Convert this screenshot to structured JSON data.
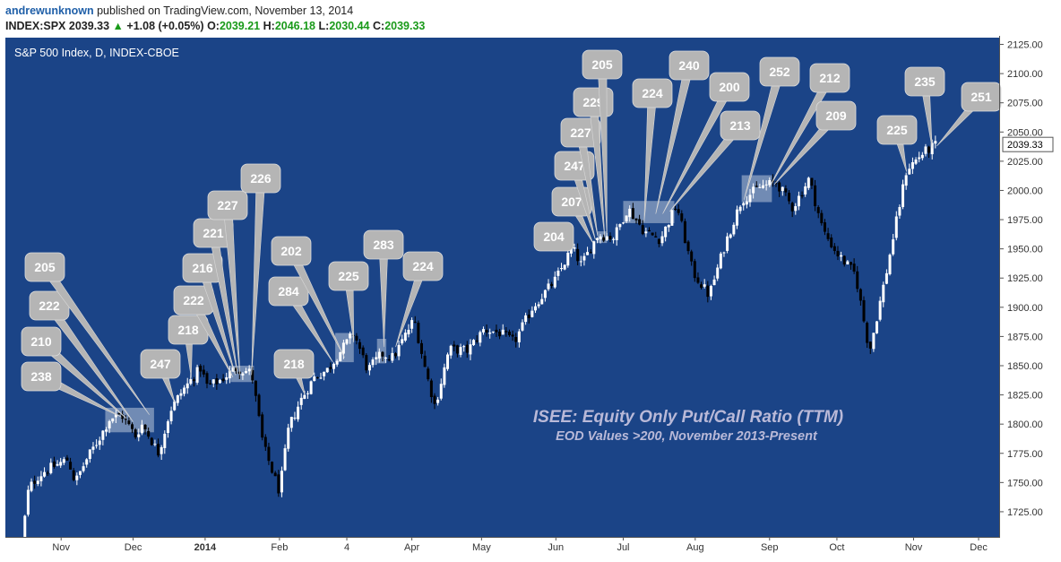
{
  "header": {
    "author": "andrewunknown",
    "published_text": "published on TradingView.com, November 13, 2014",
    "symbol": "INDEX:SPX",
    "last": "2039.33",
    "change_arrow": "▲",
    "change": "+1.08 (+0.05%)",
    "open_label": "O:",
    "open": "2039.21",
    "high_label": "H:",
    "high": "2046.18",
    "low_label": "L:",
    "low": "2030.44",
    "close_label": "C:",
    "close": "2039.33"
  },
  "colors": {
    "background": "#1b4487",
    "up_candle": "#ffffff",
    "down_candle": "#000000",
    "callout": "#b5b5b5",
    "annotation_text": "#b9b9d8",
    "accent_green": "#1a9a1a"
  },
  "chart_data": {
    "type": "candlestick",
    "title": "S&P 500 Index, D, INDEX-CBOE",
    "annotation_title": "ISEE: Equity Only Put/Call Ratio (TTM)",
    "annotation_subtitle": "EOD Values >200, November 2013-Present",
    "last_price_label": "2039.33",
    "grid": false,
    "ylim": [
      1705,
      2130
    ],
    "y_ticks": [
      1725,
      1750,
      1775,
      1800,
      1825,
      1850,
      1875,
      1900,
      1925,
      1950,
      1975,
      2000,
      2025,
      2050,
      2075,
      2100,
      2125
    ],
    "y_tick_labels": [
      "1725.00",
      "1750.00",
      "1775.00",
      "1800.00",
      "1825.00",
      "1850.00",
      "1875.00",
      "1900.00",
      "1925.00",
      "1950.00",
      "1975.00",
      "2000.00",
      "2025.00",
      "2050.00",
      "2075.00",
      "2100.00",
      "2125.00"
    ],
    "x_tick_labels": [
      {
        "label": "Nov",
        "date": "2013-11-01"
      },
      {
        "label": "Dec",
        "date": "2013-12-02"
      },
      {
        "label": "2014",
        "date": "2014-01-02"
      },
      {
        "label": "Feb",
        "date": "2014-02-03"
      },
      {
        "label": "4",
        "date": "2014-03-04"
      },
      {
        "label": "Apr",
        "date": "2014-04-01"
      },
      {
        "label": "May",
        "date": "2014-05-01"
      },
      {
        "label": "Jun",
        "date": "2014-06-02"
      },
      {
        "label": "Jul",
        "date": "2014-07-01"
      },
      {
        "label": "Aug",
        "date": "2014-08-01"
      },
      {
        "label": "Sep",
        "date": "2014-09-02"
      },
      {
        "label": "Oct",
        "date": "2014-10-01"
      },
      {
        "label": "Nov",
        "date": "2014-11-03"
      },
      {
        "label": "Dec",
        "date": "2014-12-01"
      }
    ],
    "closes": [
      {
        "date": "2013-10-15",
        "close": 1698
      },
      {
        "date": "2013-10-18",
        "close": 1745
      },
      {
        "date": "2013-10-22",
        "close": 1755
      },
      {
        "date": "2013-10-25",
        "close": 1760
      },
      {
        "date": "2013-10-30",
        "close": 1765
      },
      {
        "date": "2013-11-04",
        "close": 1770
      },
      {
        "date": "2013-11-07",
        "close": 1750
      },
      {
        "date": "2013-11-12",
        "close": 1770
      },
      {
        "date": "2013-11-18",
        "close": 1790
      },
      {
        "date": "2013-11-22",
        "close": 1805
      },
      {
        "date": "2013-11-27",
        "close": 1808
      },
      {
        "date": "2013-12-03",
        "close": 1790
      },
      {
        "date": "2013-12-06",
        "close": 1800
      },
      {
        "date": "2013-12-13",
        "close": 1775
      },
      {
        "date": "2013-12-18",
        "close": 1812
      },
      {
        "date": "2013-12-23",
        "close": 1828
      },
      {
        "date": "2013-12-31",
        "close": 1848
      },
      {
        "date": "2014-01-03",
        "close": 1832
      },
      {
        "date": "2014-01-09",
        "close": 1838
      },
      {
        "date": "2014-01-15",
        "close": 1848
      },
      {
        "date": "2014-01-22",
        "close": 1844
      },
      {
        "date": "2014-01-27",
        "close": 1782
      },
      {
        "date": "2014-02-03",
        "close": 1742
      },
      {
        "date": "2014-02-07",
        "close": 1797
      },
      {
        "date": "2014-02-12",
        "close": 1820
      },
      {
        "date": "2014-02-18",
        "close": 1840
      },
      {
        "date": "2014-02-24",
        "close": 1847
      },
      {
        "date": "2014-02-28",
        "close": 1859
      },
      {
        "date": "2014-03-07",
        "close": 1878
      },
      {
        "date": "2014-03-13",
        "close": 1846
      },
      {
        "date": "2014-03-19",
        "close": 1860
      },
      {
        "date": "2014-03-24",
        "close": 1857
      },
      {
        "date": "2014-04-02",
        "close": 1890
      },
      {
        "date": "2014-04-07",
        "close": 1845
      },
      {
        "date": "2014-04-11",
        "close": 1815
      },
      {
        "date": "2014-04-17",
        "close": 1864
      },
      {
        "date": "2014-04-25",
        "close": 1863
      },
      {
        "date": "2014-05-02",
        "close": 1881
      },
      {
        "date": "2014-05-09",
        "close": 1878
      },
      {
        "date": "2014-05-15",
        "close": 1870
      },
      {
        "date": "2014-05-23",
        "close": 1900
      },
      {
        "date": "2014-06-02",
        "close": 1924
      },
      {
        "date": "2014-06-09",
        "close": 1951
      },
      {
        "date": "2014-06-13",
        "close": 1936
      },
      {
        "date": "2014-06-20",
        "close": 1962
      },
      {
        "date": "2014-06-27",
        "close": 1960
      },
      {
        "date": "2014-07-03",
        "close": 1985
      },
      {
        "date": "2014-07-10",
        "close": 1965
      },
      {
        "date": "2014-07-17",
        "close": 1958
      },
      {
        "date": "2014-07-24",
        "close": 1988
      },
      {
        "date": "2014-07-31",
        "close": 1930
      },
      {
        "date": "2014-08-07",
        "close": 1910
      },
      {
        "date": "2014-08-14",
        "close": 1955
      },
      {
        "date": "2014-08-21",
        "close": 1992
      },
      {
        "date": "2014-08-29",
        "close": 2003
      },
      {
        "date": "2014-09-05",
        "close": 2007
      },
      {
        "date": "2014-09-12",
        "close": 1985
      },
      {
        "date": "2014-09-19",
        "close": 2010
      },
      {
        "date": "2014-09-25",
        "close": 1966
      },
      {
        "date": "2014-10-01",
        "close": 1946
      },
      {
        "date": "2014-10-09",
        "close": 1928
      },
      {
        "date": "2014-10-15",
        "close": 1862
      },
      {
        "date": "2014-10-22",
        "close": 1927
      },
      {
        "date": "2014-10-31",
        "close": 2018
      },
      {
        "date": "2014-11-07",
        "close": 2032
      },
      {
        "date": "2014-11-13",
        "close": 2039.33
      }
    ],
    "shaded_zones": [
      {
        "start": "2013-11-20",
        "end": "2013-12-11",
        "low": 1793,
        "high": 1814
      },
      {
        "start": "2014-01-13",
        "end": "2014-01-23",
        "low": 1836,
        "high": 1850
      },
      {
        "start": "2014-02-27",
        "end": "2014-03-07",
        "low": 1853,
        "high": 1878
      },
      {
        "start": "2014-03-17",
        "end": "2014-03-21",
        "low": 1852,
        "high": 1873
      },
      {
        "start": "2014-06-20",
        "end": "2014-06-24",
        "low": 1955,
        "high": 1965
      },
      {
        "start": "2014-07-01",
        "end": "2014-07-23",
        "low": 1972,
        "high": 1991
      },
      {
        "start": "2014-08-21",
        "end": "2014-09-03",
        "low": 1990,
        "high": 2013
      }
    ],
    "callouts": [
      {
        "value": "238",
        "date": "2013-11-27",
        "price": 1806
      },
      {
        "value": "210",
        "date": "2013-11-29",
        "price": 1805
      },
      {
        "value": "222",
        "date": "2013-12-02",
        "price": 1802
      },
      {
        "value": "205",
        "date": "2013-12-09",
        "price": 1808
      },
      {
        "value": "247",
        "date": "2013-12-20",
        "price": 1818
      },
      {
        "value": "218",
        "date": "2013-12-27",
        "price": 1840
      },
      {
        "value": "222",
        "date": "2014-01-14",
        "price": 1840
      },
      {
        "value": "216",
        "date": "2014-01-15",
        "price": 1842
      },
      {
        "value": "221",
        "date": "2014-01-16",
        "price": 1843
      },
      {
        "value": "227",
        "date": "2014-01-17",
        "price": 1842
      },
      {
        "value": "226",
        "date": "2014-01-22",
        "price": 1842
      },
      {
        "value": "218",
        "date": "2014-02-14",
        "price": 1825
      },
      {
        "value": "284",
        "date": "2014-02-26",
        "price": 1853
      },
      {
        "value": "202",
        "date": "2014-03-03",
        "price": 1857
      },
      {
        "value": "225",
        "date": "2014-03-07",
        "price": 1870
      },
      {
        "value": "283",
        "date": "2014-03-20",
        "price": 1866
      },
      {
        "value": "224",
        "date": "2014-03-25",
        "price": 1866
      },
      {
        "value": "204",
        "date": "2014-06-09",
        "price": 1952
      },
      {
        "value": "207",
        "date": "2014-06-18",
        "price": 1955
      },
      {
        "value": "247",
        "date": "2014-06-19",
        "price": 1958
      },
      {
        "value": "227",
        "date": "2014-06-20",
        "price": 1961
      },
      {
        "value": "229",
        "date": "2014-06-23",
        "price": 1961
      },
      {
        "value": "205",
        "date": "2014-06-24",
        "price": 1960
      },
      {
        "value": "224",
        "date": "2014-07-10",
        "price": 1973
      },
      {
        "value": "240",
        "date": "2014-07-15",
        "price": 1980
      },
      {
        "value": "200",
        "date": "2014-07-18",
        "price": 1980
      },
      {
        "value": "213",
        "date": "2014-07-21",
        "price": 1982
      },
      {
        "value": "252",
        "date": "2014-08-22",
        "price": 1992
      },
      {
        "value": "212",
        "date": "2014-09-02",
        "price": 2003
      },
      {
        "value": "209",
        "date": "2014-09-04",
        "price": 2005
      },
      {
        "value": "225",
        "date": "2014-10-31",
        "price": 2016
      },
      {
        "value": "235",
        "date": "2014-11-11",
        "price": 2036
      },
      {
        "value": "251",
        "date": "2014-11-13",
        "price": 2038
      }
    ]
  }
}
